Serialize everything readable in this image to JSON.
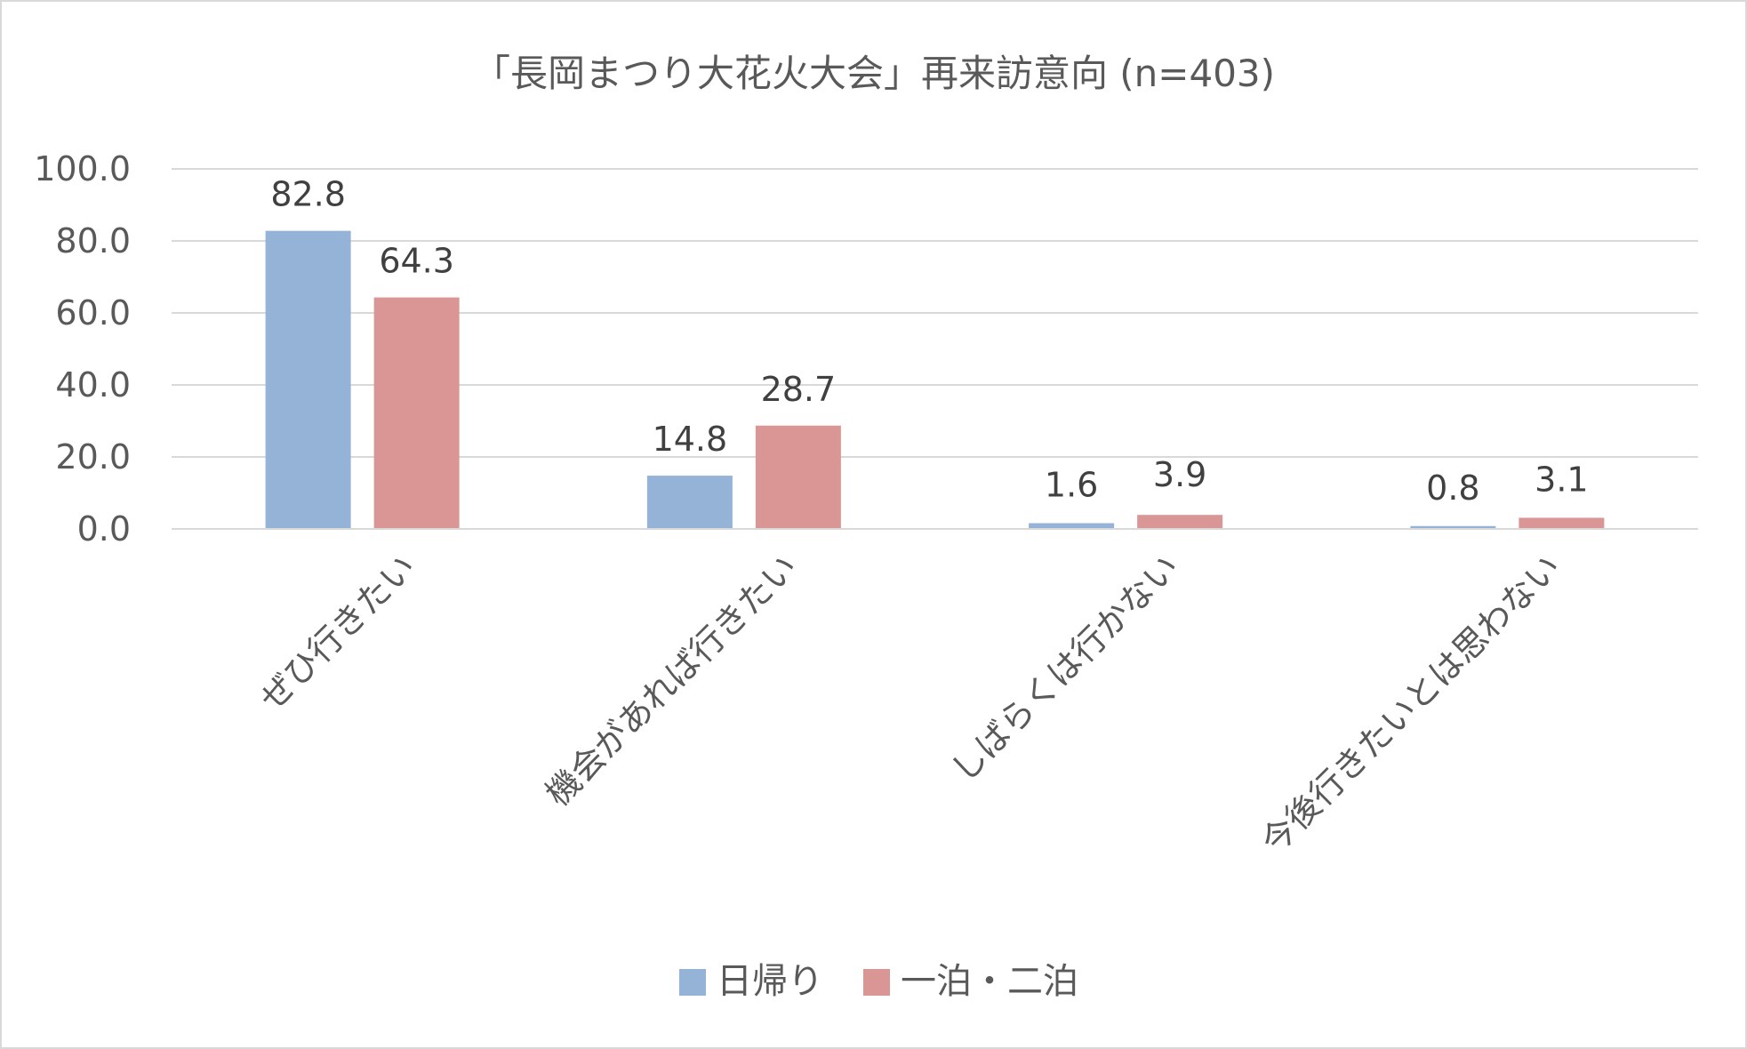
{
  "chart_data": {
    "type": "bar",
    "title": "「長岡まつり大花火大会」再来訪意向 (n=403)",
    "categories": [
      "ぜひ行きたい",
      "機会があれば行きたい",
      "しばらくは行かない",
      "今後行きたいとは思わない"
    ],
    "series": [
      {
        "name": "日帰り",
        "color": "#95b3d7",
        "values": [
          82.8,
          14.8,
          1.6,
          0.8
        ]
      },
      {
        "name": "一泊・二泊",
        "color": "#d99694",
        "values": [
          64.3,
          28.7,
          3.9,
          3.1
        ]
      }
    ],
    "ylim": [
      0,
      100
    ],
    "yticks": [
      "0.0",
      "20.0",
      "40.0",
      "60.0",
      "80.0",
      "100.0"
    ],
    "grid": true,
    "legend_position": "bottom"
  }
}
